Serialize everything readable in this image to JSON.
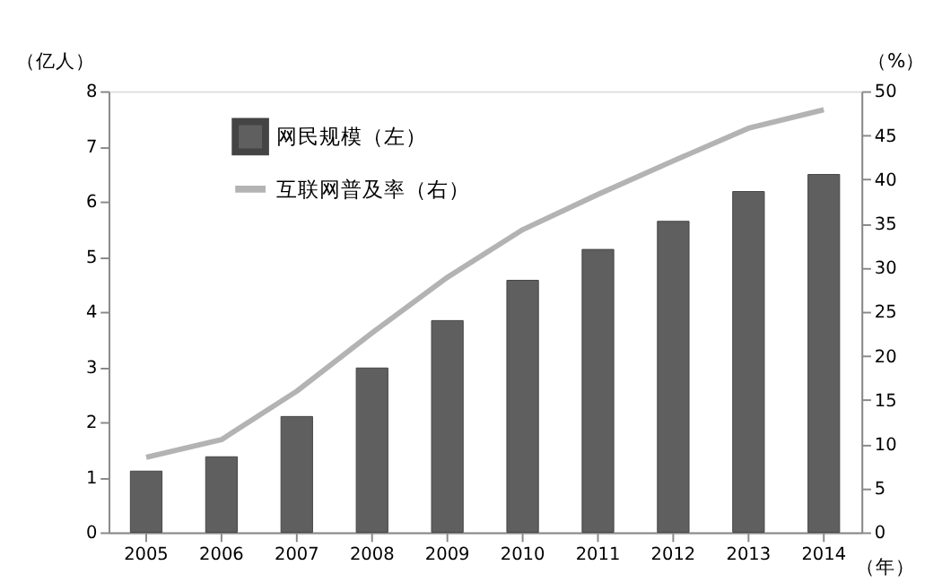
{
  "chart_data": {
    "type": "bar",
    "categories": [
      "2005",
      "2006",
      "2007",
      "2008",
      "2009",
      "2010",
      "2011",
      "2012",
      "2013",
      "2014"
    ],
    "series": [
      {
        "name": "网民规模（左）",
        "color": "#5f5f5f",
        "values": [
          1.11,
          1.37,
          2.1,
          2.98,
          3.84,
          4.57,
          5.13,
          5.64,
          6.18,
          6.49
        ]
      },
      {
        "name": "互联网普及率（右）",
        "type": "line",
        "axis": "y2",
        "color": "#b3b3b3",
        "values": [
          8.5,
          10.5,
          16.0,
          22.6,
          28.9,
          34.3,
          38.3,
          42.1,
          45.8,
          47.9
        ]
      }
    ],
    "xlabel": "（年）",
    "ylabel": "（亿人）",
    "y2label": "（%）",
    "ylim": [
      0,
      8
    ],
    "yticks": [
      0,
      1,
      2,
      3,
      4,
      5,
      6,
      7,
      8
    ],
    "y2lim": [
      0,
      50
    ],
    "y2ticks": [
      0,
      5,
      10,
      15,
      20,
      25,
      30,
      35,
      40,
      45,
      50
    ],
    "legend": "top left",
    "grid": false,
    "marker": "none",
    "line_style": "solid"
  }
}
